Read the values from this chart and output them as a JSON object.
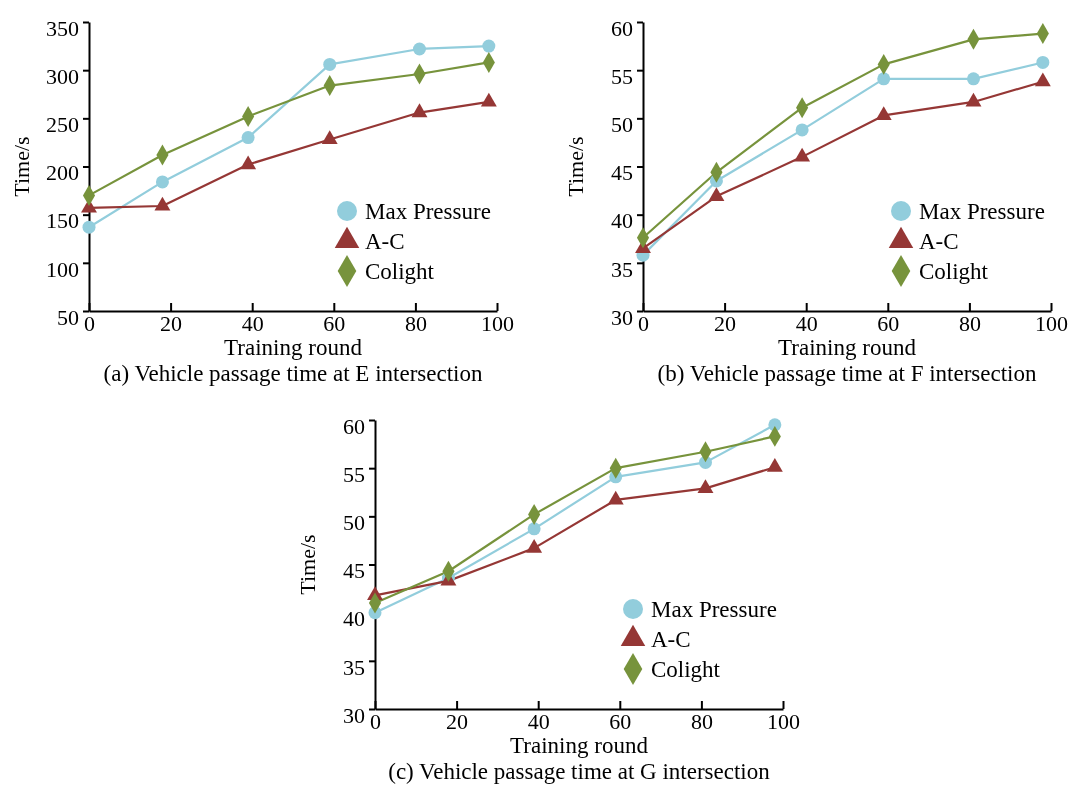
{
  "chart_data": [
    {
      "type": "line",
      "title": "(a) Vehicle passage time at E intersection",
      "xlabel": "Training round",
      "ylabel": "Time/s",
      "x": [
        0,
        18,
        39,
        59,
        81,
        98
      ],
      "xlim": [
        0,
        100
      ],
      "xticks": [
        0,
        20,
        40,
        60,
        80,
        100
      ],
      "ylim": [
        50,
        350
      ],
      "yticks": [
        50,
        100,
        150,
        200,
        250,
        300,
        350
      ],
      "legend": "bottom right",
      "grid": false,
      "line_style": "solid",
      "series": [
        {
          "name": "Max Pressure",
          "color": "#92cddc",
          "marker": "circle",
          "values": [
            137,
            184,
            230,
            306,
            322,
            325
          ]
        },
        {
          "name": "A-C",
          "color": "#953735",
          "marker": "triangle",
          "values": [
            157,
            159,
            202,
            228,
            256,
            267
          ]
        },
        {
          "name": "Colight",
          "color": "#77933c",
          "marker": "diamond",
          "values": [
            170,
            212,
            252,
            284,
            296,
            308
          ]
        }
      ]
    },
    {
      "type": "line",
      "title": "(b) Vehicle passage time at F intersection",
      "xlabel": "Training round",
      "ylabel": "Time/s",
      "x": [
        0,
        18,
        39,
        59,
        81,
        98
      ],
      "xlim": [
        0,
        100
      ],
      "xticks": [
        0,
        20,
        40,
        60,
        80,
        100
      ],
      "ylim": [
        30,
        60
      ],
      "yticks": [
        30,
        35,
        40,
        45,
        50,
        55,
        60
      ],
      "legend": "bottom right",
      "grid": false,
      "line_style": "solid",
      "series": [
        {
          "name": "Max Pressure",
          "color": "#92cddc",
          "marker": "circle",
          "values": [
            35.8,
            43.5,
            48.8,
            54.1,
            54.1,
            55.8
          ]
        },
        {
          "name": "A-C",
          "color": "#953735",
          "marker": "triangle",
          "values": [
            36.5,
            41.9,
            46.0,
            50.3,
            51.7,
            53.8
          ]
        },
        {
          "name": "Colight",
          "color": "#77933c",
          "marker": "diamond",
          "values": [
            37.6,
            44.4,
            51.1,
            55.6,
            58.2,
            58.8
          ]
        }
      ]
    },
    {
      "type": "line",
      "title": "(c) Vehicle passage time at G intersection",
      "xlabel": "Training round",
      "ylabel": "Time/s",
      "x": [
        0,
        18,
        39,
        59,
        81,
        98
      ],
      "xlim": [
        0,
        100
      ],
      "xticks": [
        0,
        20,
        40,
        60,
        80,
        100
      ],
      "ylim": [
        30,
        60
      ],
      "yticks": [
        30,
        35,
        40,
        45,
        50,
        55,
        60
      ],
      "legend": "bottom right",
      "grid": false,
      "line_style": "solid",
      "series": [
        {
          "name": "Max Pressure",
          "color": "#92cddc",
          "marker": "circle",
          "values": [
            40.0,
            43.6,
            48.7,
            54.1,
            55.6,
            59.5
          ]
        },
        {
          "name": "A-C",
          "color": "#953735",
          "marker": "triangle",
          "values": [
            41.8,
            43.3,
            46.7,
            51.7,
            52.9,
            55.1
          ]
        },
        {
          "name": "Colight",
          "color": "#77933c",
          "marker": "diamond",
          "values": [
            41.0,
            44.3,
            50.2,
            55.0,
            56.7,
            58.3
          ]
        }
      ]
    }
  ]
}
